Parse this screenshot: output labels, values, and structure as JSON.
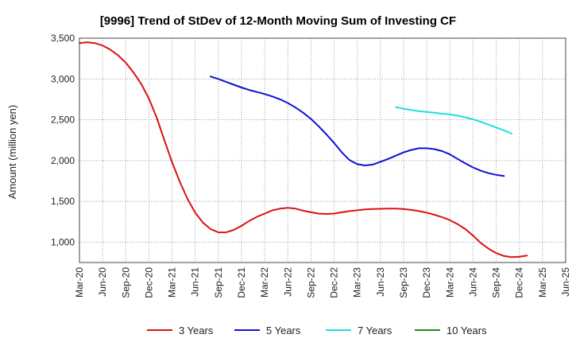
{
  "chart_data": {
    "type": "line",
    "title": "[9996]  Trend of StDev of 12-Month Moving Sum of Investing CF",
    "xlabel": "",
    "ylabel": "Amount (million yen)",
    "ylim": [
      750,
      3500
    ],
    "yticks": [
      1000,
      1500,
      2000,
      2500,
      3000,
      3500
    ],
    "ytick_labels": [
      "1,000",
      "1,500",
      "2,000",
      "2,500",
      "3,000",
      "3,500"
    ],
    "xticks": [
      "Mar-20",
      "Jun-20",
      "Sep-20",
      "Dec-20",
      "Mar-21",
      "Jun-21",
      "Sep-21",
      "Dec-21",
      "Mar-22",
      "Jun-22",
      "Sep-22",
      "Dec-22",
      "Mar-23",
      "Jun-23",
      "Sep-23",
      "Dec-23",
      "Mar-24",
      "Jun-24",
      "Sep-24",
      "Dec-24",
      "Mar-25",
      "Jun-25"
    ],
    "grid": true,
    "legend_position": "bottom",
    "series": [
      {
        "name": "3 Years",
        "color": "#dd1111",
        "points": [
          [
            "Mar-20",
            3440
          ],
          [
            "Apr-20",
            3450
          ],
          [
            "May-20",
            3440
          ],
          [
            "Jun-20",
            3410
          ],
          [
            "Jul-20",
            3360
          ],
          [
            "Aug-20",
            3290
          ],
          [
            "Sep-20",
            3200
          ],
          [
            "Oct-20",
            3080
          ],
          [
            "Nov-20",
            2940
          ],
          [
            "Dec-20",
            2760
          ],
          [
            "Jan-21",
            2530
          ],
          [
            "Feb-21",
            2250
          ],
          [
            "Mar-21",
            1980
          ],
          [
            "Apr-21",
            1740
          ],
          [
            "May-21",
            1530
          ],
          [
            "Jun-21",
            1360
          ],
          [
            "Jul-21",
            1240
          ],
          [
            "Aug-21",
            1160
          ],
          [
            "Sep-21",
            1120
          ],
          [
            "Oct-21",
            1120
          ],
          [
            "Nov-21",
            1150
          ],
          [
            "Dec-21",
            1200
          ],
          [
            "Jan-22",
            1260
          ],
          [
            "Feb-22",
            1310
          ],
          [
            "Mar-22",
            1350
          ],
          [
            "Apr-22",
            1390
          ],
          [
            "May-22",
            1410
          ],
          [
            "Jun-22",
            1420
          ],
          [
            "Jul-22",
            1410
          ],
          [
            "Aug-22",
            1385
          ],
          [
            "Sep-22",
            1365
          ],
          [
            "Oct-22",
            1350
          ],
          [
            "Nov-22",
            1345
          ],
          [
            "Dec-22",
            1350
          ],
          [
            "Jan-23",
            1365
          ],
          [
            "Feb-23",
            1380
          ],
          [
            "Mar-23",
            1390
          ],
          [
            "Apr-23",
            1400
          ],
          [
            "May-23",
            1405
          ],
          [
            "Jun-23",
            1408
          ],
          [
            "Jul-23",
            1410
          ],
          [
            "Aug-23",
            1410
          ],
          [
            "Sep-23",
            1405
          ],
          [
            "Oct-23",
            1395
          ],
          [
            "Nov-23",
            1380
          ],
          [
            "Dec-23",
            1360
          ],
          [
            "Jan-24",
            1335
          ],
          [
            "Feb-24",
            1305
          ],
          [
            "Mar-24",
            1270
          ],
          [
            "Apr-24",
            1220
          ],
          [
            "May-24",
            1160
          ],
          [
            "Jun-24",
            1080
          ],
          [
            "Jul-24",
            990
          ],
          [
            "Aug-24",
            920
          ],
          [
            "Sep-24",
            865
          ],
          [
            "Oct-24",
            830
          ],
          [
            "Nov-24",
            815
          ],
          [
            "Dec-24",
            820
          ],
          [
            "Jan-25",
            835
          ]
        ]
      },
      {
        "name": "5 Years",
        "color": "#1111cc",
        "points": [
          [
            "Aug-21",
            3030
          ],
          [
            "Sep-21",
            3000
          ],
          [
            "Oct-21",
            2965
          ],
          [
            "Nov-21",
            2930
          ],
          [
            "Dec-21",
            2895
          ],
          [
            "Jan-22",
            2865
          ],
          [
            "Feb-22",
            2840
          ],
          [
            "Mar-22",
            2815
          ],
          [
            "Apr-22",
            2785
          ],
          [
            "May-22",
            2750
          ],
          [
            "Jun-22",
            2705
          ],
          [
            "Jul-22",
            2650
          ],
          [
            "Aug-22",
            2585
          ],
          [
            "Sep-22",
            2510
          ],
          [
            "Oct-22",
            2420
          ],
          [
            "Nov-22",
            2320
          ],
          [
            "Dec-22",
            2215
          ],
          [
            "Jan-23",
            2100
          ],
          [
            "Feb-23",
            2005
          ],
          [
            "Mar-23",
            1955
          ],
          [
            "Apr-23",
            1940
          ],
          [
            "May-23",
            1950
          ],
          [
            "Jun-23",
            1985
          ],
          [
            "Jul-23",
            2020
          ],
          [
            "Aug-23",
            2060
          ],
          [
            "Sep-23",
            2100
          ],
          [
            "Oct-23",
            2130
          ],
          [
            "Nov-23",
            2150
          ],
          [
            "Dec-23",
            2150
          ],
          [
            "Jan-24",
            2140
          ],
          [
            "Feb-24",
            2115
          ],
          [
            "Mar-24",
            2075
          ],
          [
            "Apr-24",
            2020
          ],
          [
            "May-24",
            1965
          ],
          [
            "Jun-24",
            1915
          ],
          [
            "Jul-24",
            1875
          ],
          [
            "Aug-24",
            1845
          ],
          [
            "Sep-24",
            1825
          ],
          [
            "Oct-24",
            1810
          ]
        ]
      },
      {
        "name": "7 Years",
        "color": "#22dddd",
        "points": [
          [
            "Aug-23",
            2655
          ],
          [
            "Sep-23",
            2635
          ],
          [
            "Oct-23",
            2620
          ],
          [
            "Nov-23",
            2605
          ],
          [
            "Dec-23",
            2595
          ],
          [
            "Jan-24",
            2585
          ],
          [
            "Feb-24",
            2575
          ],
          [
            "Mar-24",
            2565
          ],
          [
            "Apr-24",
            2550
          ],
          [
            "May-24",
            2530
          ],
          [
            "Jun-24",
            2505
          ],
          [
            "Jul-24",
            2475
          ],
          [
            "Aug-24",
            2440
          ],
          [
            "Sep-24",
            2405
          ],
          [
            "Oct-24",
            2370
          ],
          [
            "Nov-24",
            2330
          ]
        ]
      },
      {
        "name": "10 Years",
        "color": "#228822",
        "points": []
      }
    ]
  }
}
